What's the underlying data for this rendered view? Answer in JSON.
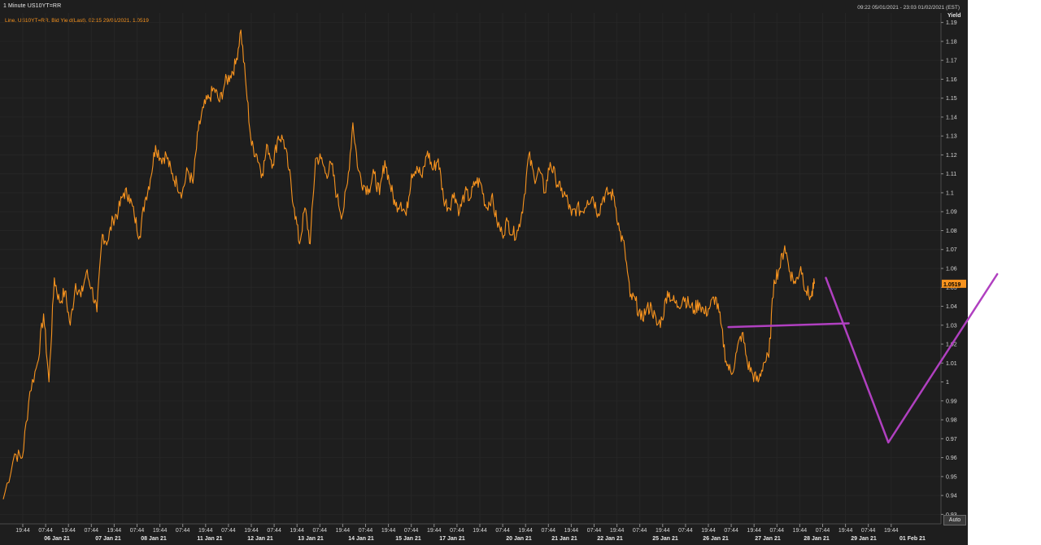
{
  "window": {
    "title": "1 Minute US10YT=RR",
    "date_range": "09:22 05/01/2021 - 23:03 01/02/2021 (EST)",
    "auto_button": "Auto"
  },
  "colors": {
    "background": "#1e1e1e",
    "series_line": "#f7931e",
    "annotation": "#b040c0",
    "last_price_tag": "#f7931e"
  },
  "chart_data": {
    "type": "line",
    "legend": "Line, US10YT=RR, Bid Yield(Last), 02:15 29/01/2021, 1.0519",
    "ylabel": "Yield",
    "ylim": [
      0.925,
      1.195
    ],
    "y_ticks": [
      "1.19",
      "1.18",
      "1.17",
      "1.16",
      "1.15",
      "1.14",
      "1.13",
      "1.12",
      "1.11",
      "1.1",
      "1.09",
      "1.08",
      "1.07",
      "1.06",
      "1.05",
      "1.04",
      "1.03",
      "1.02",
      "1.01",
      "1",
      "0.99",
      "0.98",
      "0.97",
      "0.96",
      "0.95",
      "0.94",
      "0.93"
    ],
    "last_value": "1.0519",
    "x_session_labels": [
      "19:44",
      "07:44",
      "19:44",
      "07:44",
      "19:44",
      "07:44",
      "19:44",
      "07:44",
      "19:44",
      "07:44",
      "19:44",
      "07:44",
      "19:44",
      "07:44",
      "19:44",
      "07:44",
      "19:44",
      "07:44",
      "19:44",
      "07:44",
      "19:44",
      "07:44",
      "19:44",
      "07:44",
      "19:44",
      "07:44",
      "19:44",
      "07:44",
      "19:44",
      "07:44",
      "19:44",
      "07:44",
      "19:44",
      "07:44",
      "19:44",
      "07:44",
      "19:44",
      "07:44",
      "19:44"
    ],
    "x_day_labels": [
      "06 Jan 21",
      "07 Jan 21",
      "08 Jan 21",
      "11 Jan 21",
      "12 Jan 21",
      "13 Jan 21",
      "14 Jan 21",
      "15 Jan 21",
      "17 Jan 21",
      "20 Jan 21",
      "21 Jan 21",
      "22 Jan 21",
      "25 Jan 21",
      "26 Jan 21",
      "27 Jan 21",
      "28 Jan 21",
      "29 Jan 21",
      "01 Feb 21"
    ],
    "series": [
      {
        "values": [
          [
            0,
            0.938
          ],
          [
            1.5,
            0.962
          ],
          [
            2.5,
            0.96
          ],
          [
            3.5,
            0.995
          ],
          [
            4.5,
            1.01
          ],
          [
            5.3,
            1.036
          ],
          [
            6.0,
            1.0
          ],
          [
            6.7,
            1.055
          ],
          [
            7.4,
            1.042
          ],
          [
            8.1,
            1.048
          ],
          [
            8.8,
            1.03
          ],
          [
            9.5,
            1.052
          ],
          [
            10.2,
            1.045
          ],
          [
            10.9,
            1.058
          ],
          [
            11.6,
            1.05
          ],
          [
            12.3,
            1.037
          ],
          [
            13.0,
            1.078
          ],
          [
            13.7,
            1.074
          ],
          [
            14.4,
            1.086
          ],
          [
            15.1,
            1.09
          ],
          [
            15.8,
            1.1
          ],
          [
            16.5,
            1.099
          ],
          [
            17.2,
            1.088
          ],
          [
            17.9,
            1.077
          ],
          [
            18.6,
            1.096
          ],
          [
            19.3,
            1.107
          ],
          [
            20.0,
            1.125
          ],
          [
            20.7,
            1.118
          ],
          [
            21.4,
            1.12
          ],
          [
            22.1,
            1.11
          ],
          [
            22.8,
            1.105
          ],
          [
            23.5,
            1.1
          ],
          [
            24.2,
            1.112
          ],
          [
            24.9,
            1.105
          ],
          [
            25.6,
            1.133
          ],
          [
            26.3,
            1.145
          ],
          [
            27.0,
            1.15
          ],
          [
            27.7,
            1.155
          ],
          [
            28.4,
            1.148
          ],
          [
            29.1,
            1.158
          ],
          [
            29.8,
            1.162
          ],
          [
            30.5,
            1.168
          ],
          [
            31.2,
            1.186
          ],
          [
            31.9,
            1.155
          ],
          [
            32.6,
            1.125
          ],
          [
            33.3,
            1.12
          ],
          [
            34.0,
            1.11
          ],
          [
            34.7,
            1.125
          ],
          [
            35.4,
            1.115
          ],
          [
            36.1,
            1.13
          ],
          [
            36.8,
            1.128
          ],
          [
            37.5,
            1.112
          ],
          [
            38.2,
            1.092
          ],
          [
            38.9,
            1.073
          ],
          [
            39.6,
            1.092
          ],
          [
            40.3,
            1.073
          ],
          [
            41.0,
            1.118
          ],
          [
            41.7,
            1.118
          ],
          [
            42.4,
            1.11
          ],
          [
            43.1,
            1.115
          ],
          [
            43.8,
            1.098
          ],
          [
            44.5,
            1.088
          ],
          [
            45.2,
            1.105
          ],
          [
            45.9,
            1.137
          ],
          [
            46.6,
            1.112
          ],
          [
            47.3,
            1.104
          ],
          [
            48.0,
            1.102
          ],
          [
            48.7,
            1.11
          ],
          [
            49.4,
            1.099
          ],
          [
            50.1,
            1.117
          ],
          [
            50.8,
            1.104
          ],
          [
            51.5,
            1.093
          ],
          [
            52.2,
            1.095
          ],
          [
            52.9,
            1.088
          ],
          [
            53.6,
            1.11
          ],
          [
            54.3,
            1.114
          ],
          [
            55.0,
            1.108
          ],
          [
            55.7,
            1.122
          ],
          [
            56.4,
            1.112
          ],
          [
            57.1,
            1.118
          ],
          [
            57.8,
            1.097
          ],
          [
            58.5,
            1.092
          ],
          [
            59.2,
            1.1
          ],
          [
            59.9,
            1.09
          ],
          [
            60.6,
            1.1
          ],
          [
            61.3,
            1.097
          ],
          [
            62.0,
            1.106
          ],
          [
            62.7,
            1.105
          ],
          [
            63.4,
            1.092
          ],
          [
            64.1,
            1.098
          ],
          [
            64.8,
            1.085
          ],
          [
            65.5,
            1.078
          ],
          [
            66.2,
            1.085
          ],
          [
            66.9,
            1.078
          ],
          [
            67.6,
            1.08
          ],
          [
            68.3,
            1.095
          ],
          [
            69.0,
            1.12
          ],
          [
            69.7,
            1.108
          ],
          [
            70.4,
            1.112
          ],
          [
            71.1,
            1.1
          ],
          [
            71.8,
            1.116
          ],
          [
            72.5,
            1.108
          ],
          [
            73.2,
            1.101
          ],
          [
            73.9,
            1.098
          ],
          [
            74.6,
            1.088
          ],
          [
            75.3,
            1.092
          ],
          [
            76.0,
            1.09
          ],
          [
            76.7,
            1.096
          ],
          [
            77.4,
            1.098
          ],
          [
            78.1,
            1.089
          ],
          [
            78.8,
            1.098
          ],
          [
            79.5,
            1.1
          ],
          [
            80.2,
            1.098
          ],
          [
            80.9,
            1.08
          ],
          [
            81.6,
            1.07
          ],
          [
            82.3,
            1.045
          ],
          [
            83.0,
            1.043
          ],
          [
            83.7,
            1.033
          ],
          [
            84.4,
            1.038
          ],
          [
            85.1,
            1.04
          ],
          [
            85.8,
            1.03
          ],
          [
            86.5,
            1.033
          ],
          [
            87.2,
            1.048
          ],
          [
            87.9,
            1.043
          ],
          [
            88.6,
            1.04
          ],
          [
            89.3,
            1.045
          ],
          [
            90.0,
            1.041
          ],
          [
            90.7,
            1.038
          ],
          [
            91.4,
            1.042
          ],
          [
            92.1,
            1.036
          ],
          [
            92.8,
            1.04
          ],
          [
            93.5,
            1.045
          ],
          [
            94.2,
            1.031
          ],
          [
            94.9,
            1.011
          ],
          [
            95.6,
            1.004
          ],
          [
            96.3,
            1.016
          ],
          [
            97.0,
            1.026
          ],
          [
            97.7,
            1.01
          ],
          [
            98.4,
            1.004
          ],
          [
            99.1,
            1.0
          ],
          [
            99.8,
            1.01
          ],
          [
            100.5,
            1.013
          ],
          [
            101.2,
            1.054
          ],
          [
            101.9,
            1.06
          ],
          [
            102.6,
            1.072
          ],
          [
            103.3,
            1.058
          ],
          [
            104.0,
            1.052
          ],
          [
            104.7,
            1.061
          ],
          [
            105.4,
            1.048
          ],
          [
            106.1,
            1.045
          ],
          [
            106.5,
            1.0519
          ]
        ]
      }
    ],
    "annotations": [
      {
        "kind": "trend-line",
        "points": [
          [
            95.2,
            1.029
          ],
          [
            111.0,
            1.031
          ]
        ]
      },
      {
        "kind": "projected-path",
        "points": [
          [
            108.0,
            1.055
          ],
          [
            116.2,
            0.968
          ],
          [
            130.5,
            1.057
          ]
        ]
      }
    ],
    "xlim": [
      0,
      123
    ]
  }
}
